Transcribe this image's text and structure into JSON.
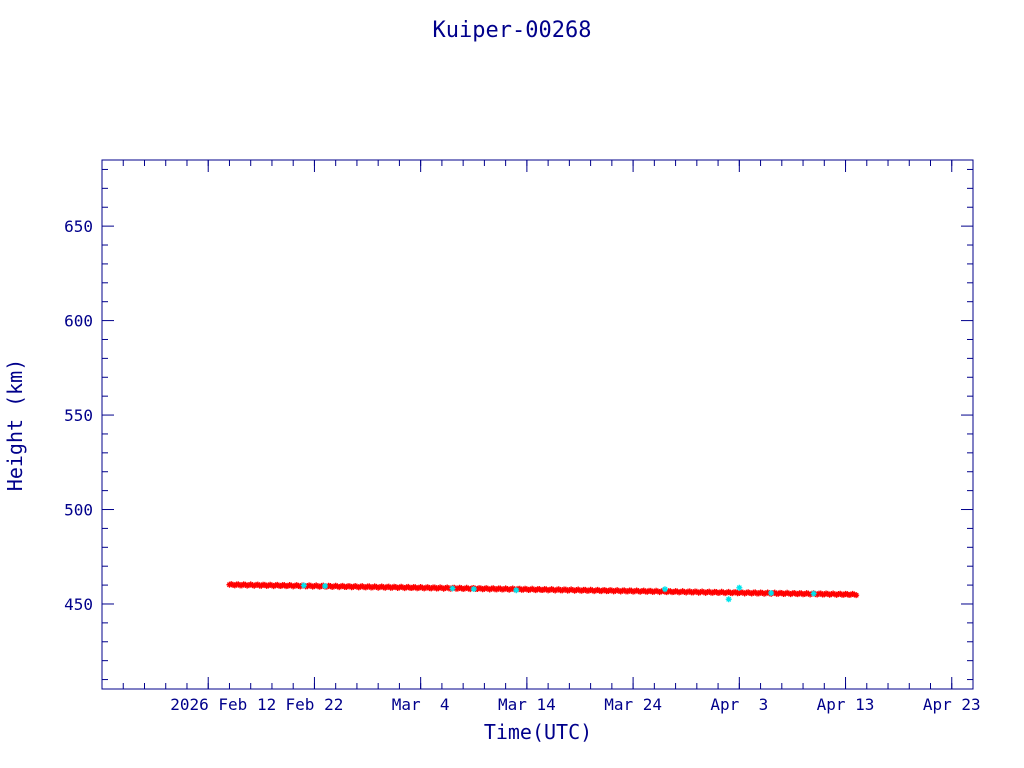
{
  "chart_data": {
    "type": "scatter",
    "title": "Kuiper-00268",
    "xlabel": "Time(UTC)",
    "ylabel": "Height (km)",
    "xlim": [
      "2026-02-02",
      "2026-04-25"
    ],
    "ylim": [
      405,
      685
    ],
    "x_ticks": [
      {
        "date": "2026-02-12",
        "label": "2026 Feb 12"
      },
      {
        "date": "2026-02-22",
        "label": "Feb 22"
      },
      {
        "date": "2026-03-04",
        "label": "Mar  4"
      },
      {
        "date": "2026-03-14",
        "label": "Mar 14"
      },
      {
        "date": "2026-03-24",
        "label": "Mar 24"
      },
      {
        "date": "2026-04-03",
        "label": "Apr  3"
      },
      {
        "date": "2026-04-13",
        "label": "Apr 13"
      },
      {
        "date": "2026-04-23",
        "label": "Apr 23"
      }
    ],
    "y_ticks": [
      450,
      500,
      550,
      600,
      650
    ],
    "grid": false,
    "colors": {
      "axis": "#00008b",
      "primary": "#ff0000",
      "secondary": "#00e5ee"
    },
    "series": [
      {
        "color": "#ff0000",
        "marker": "star",
        "start": {
          "date": "2026-02-14",
          "height": 460.2
        },
        "end": {
          "date": "2026-04-14",
          "height": 455.0
        }
      },
      {
        "color": "#00e5ee",
        "marker": "star",
        "points": [
          {
            "date": "2026-02-21",
            "height": 459.8
          },
          {
            "date": "2026-02-23",
            "height": 459.5
          },
          {
            "date": "2026-03-07",
            "height": 458.2
          },
          {
            "date": "2026-03-09",
            "height": 457.9
          },
          {
            "date": "2026-03-13",
            "height": 457.3
          },
          {
            "date": "2026-03-27",
            "height": 457.8
          },
          {
            "date": "2026-04-02",
            "height": 452.5
          },
          {
            "date": "2026-04-03",
            "height": 458.6
          },
          {
            "date": "2026-04-06",
            "height": 455.8
          },
          {
            "date": "2026-04-10",
            "height": 455.5
          }
        ]
      }
    ]
  }
}
